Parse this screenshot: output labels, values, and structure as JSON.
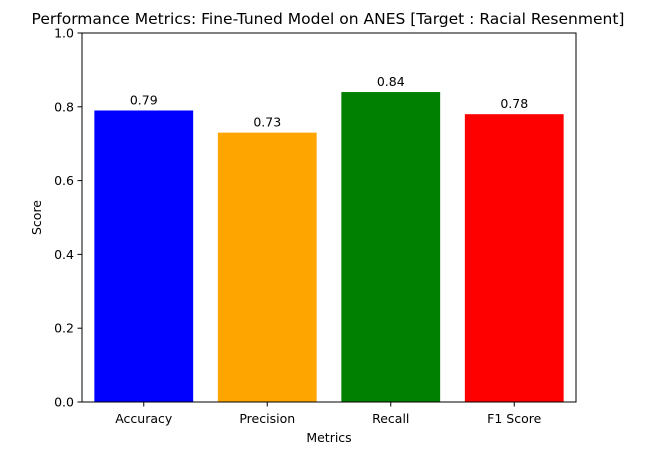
{
  "chart_data": {
    "type": "bar",
    "title": "Performance Metrics: Fine-Tuned Model on ANES [Target : Racial Resenment]",
    "xlabel": "Metrics",
    "ylabel": "Score",
    "categories": [
      "Accuracy",
      "Precision",
      "Recall",
      "F1 Score"
    ],
    "values": [
      0.79,
      0.73,
      0.84,
      0.78
    ],
    "value_labels": [
      "0.79",
      "0.73",
      "0.84",
      "0.78"
    ],
    "colors": [
      "#0000ff",
      "#ffa500",
      "#008000",
      "#ff0000"
    ],
    "ylim": [
      0,
      1.0
    ],
    "yticks": [
      0.0,
      0.2,
      0.4,
      0.6,
      0.8,
      1.0
    ],
    "ytick_labels": [
      "0.0",
      "0.2",
      "0.4",
      "0.6",
      "0.8",
      "1.0"
    ],
    "grid": false,
    "legend": "none"
  }
}
